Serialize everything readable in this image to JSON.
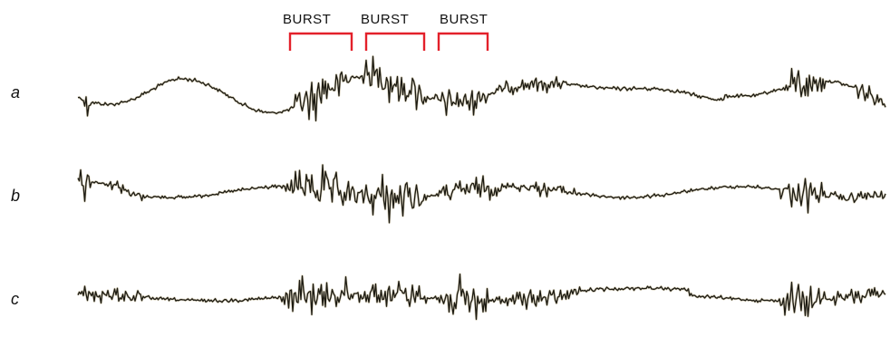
{
  "bursts": [
    {
      "label": "BURST"
    },
    {
      "label": "BURST"
    },
    {
      "label": "BURST"
    }
  ],
  "traces": [
    {
      "label": "a"
    },
    {
      "label": "b"
    },
    {
      "label": "c"
    }
  ],
  "colors": {
    "bracket": "#e3202a",
    "trace": "#1c1a12",
    "background": "#ffffff"
  }
}
